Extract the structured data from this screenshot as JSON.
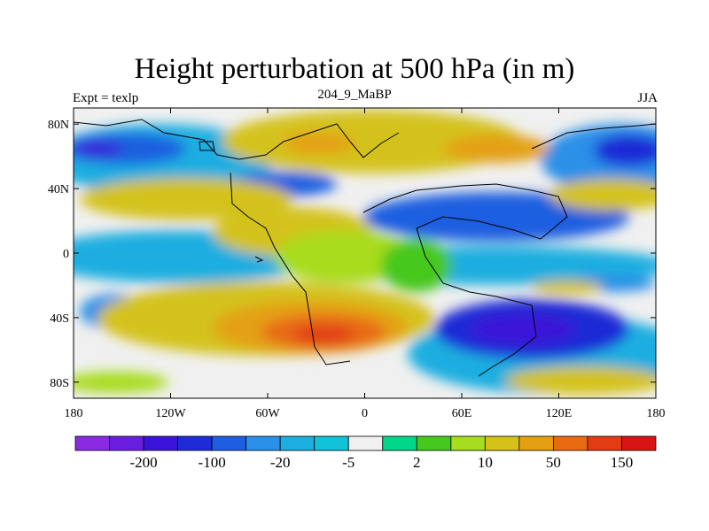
{
  "title": "Height perturbation at 500 hPa (in m)",
  "subtitle": {
    "left": "Expt = texlp",
    "center": "204_9_MaBP",
    "right": "JJA"
  },
  "map": {
    "lon_range": [
      -180,
      180
    ],
    "lat_range": [
      -90,
      90
    ],
    "x_ticks": [
      {
        "lon": -180,
        "label": "180"
      },
      {
        "lon": -120,
        "label": "120W"
      },
      {
        "lon": -60,
        "label": "60W"
      },
      {
        "lon": 0,
        "label": "0"
      },
      {
        "lon": 60,
        "label": "60E"
      },
      {
        "lon": 120,
        "label": "120E"
      },
      {
        "lon": 180,
        "label": "180"
      }
    ],
    "y_ticks": [
      {
        "lat": 80,
        "label": "80N"
      },
      {
        "lat": 40,
        "label": "40N"
      },
      {
        "lat": 0,
        "label": "0"
      },
      {
        "lat": -40,
        "label": "40S"
      },
      {
        "lat": -80,
        "label": "80S"
      }
    ]
  },
  "colorbar": {
    "colors": [
      "#8a2be2",
      "#6a1fe0",
      "#3a14d8",
      "#1e2bd6",
      "#1f5ee0",
      "#2b90e8",
      "#1eaee0",
      "#12c2d8",
      "#f0f0f0",
      "#00d68a",
      "#46c81e",
      "#a8dc1e",
      "#d4c21a",
      "#e4a012",
      "#e86a12",
      "#e23c14",
      "#d81414"
    ],
    "labels": [
      {
        "after_index": 1,
        "text": "-200"
      },
      {
        "after_index": 3,
        "text": "-100"
      },
      {
        "after_index": 5,
        "text": "-20"
      },
      {
        "after_index": 7,
        "text": "-5"
      },
      {
        "after_index": 9,
        "text": "2"
      },
      {
        "after_index": 11,
        "text": "10"
      },
      {
        "after_index": 13,
        "text": "50"
      },
      {
        "after_index": 15,
        "text": "150"
      }
    ]
  }
}
